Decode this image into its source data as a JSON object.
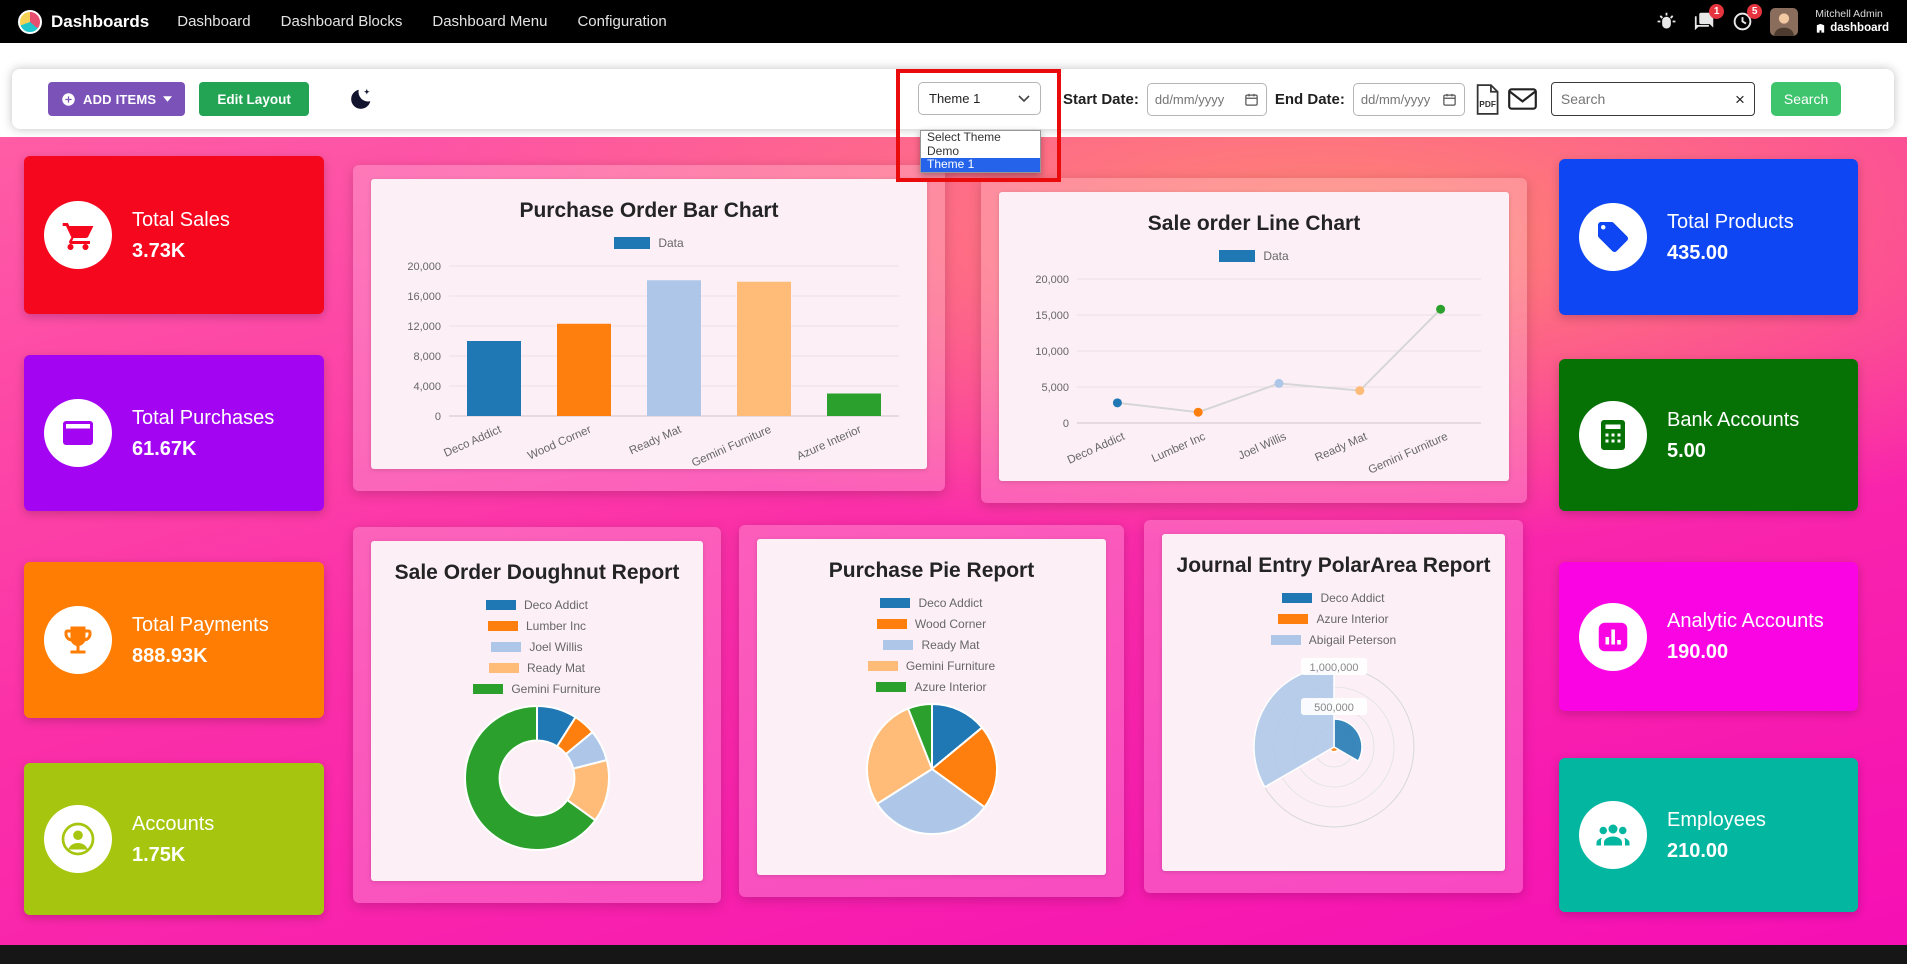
{
  "navbar": {
    "brand": "Dashboards",
    "menu": [
      "Dashboard",
      "Dashboard Blocks",
      "Dashboard Menu",
      "Configuration"
    ],
    "badges": {
      "messages": "1",
      "activities": "5"
    },
    "user": {
      "name": "Mitchell Admin",
      "company": "dashboard"
    }
  },
  "toolbar": {
    "add_items_label": "ADD ITEMS",
    "edit_layout_label": "Edit Layout",
    "theme_select": {
      "value": "Theme 1",
      "options": [
        "Select Theme",
        "Demo",
        "Theme 1"
      ]
    },
    "start_date_label": "Start Date:",
    "end_date_label": "End Date:",
    "date_placeholder": "dd/mm/yyyy",
    "search_placeholder": "Search",
    "search_button_label": "Search"
  },
  "ui_colors": {
    "add_items_bg": "#7a52b8",
    "edit_layout_bg": "#23a455",
    "search_btn_bg": "#3ec46d",
    "select_highlight": "#2563eb",
    "annotation_red": "#ea0c0c",
    "badge_red": "#e5343d"
  },
  "tiles_left": [
    {
      "label": "Total Sales",
      "value": "3.73K",
      "color": "#f5071d"
    },
    {
      "label": "Total Purchases",
      "value": "61.67K",
      "color": "#a304f2"
    },
    {
      "label": "Total Payments",
      "value": "888.93K",
      "color": "#ff7d02"
    },
    {
      "label": "Accounts",
      "value": "1.75K",
      "color": "#a6c50f"
    }
  ],
  "tiles_right": [
    {
      "label": "Total Products",
      "value": "435.00",
      "color": "#0d46f2"
    },
    {
      "label": "Bank Accounts",
      "value": "5.00",
      "color": "#067206"
    },
    {
      "label": "Analytic Accounts",
      "value": "190.00",
      "color": "#fb04e4"
    },
    {
      "label": "Employees",
      "value": "210.00",
      "color": "#02b69f"
    }
  ],
  "chart_data": [
    {
      "id": "purchase_order_bar",
      "type": "bar",
      "title": "Purchase Order Bar Chart",
      "legend": [
        "Data"
      ],
      "categories": [
        "Deco Addict",
        "Wood Corner",
        "Ready Mat",
        "Gemini Furniture",
        "Azure Interior"
      ],
      "values": [
        10000,
        12300,
        18100,
        17900,
        3000
      ],
      "yticks": [
        0,
        4000,
        8000,
        12000,
        16000,
        20000
      ],
      "ylim": [
        0,
        20000
      ],
      "grid": true,
      "legend_position": "top",
      "colors": [
        "#1f77b4",
        "#ff7f0e",
        "#aec7e8",
        "#ffbb78",
        "#2ca02c"
      ]
    },
    {
      "id": "sale_order_line",
      "type": "line",
      "title": "Sale order Line Chart",
      "legend": [
        "Data"
      ],
      "categories": [
        "Deco Addict",
        "Lumber Inc",
        "Joel Willis",
        "Ready Mat",
        "Gemini Furniture"
      ],
      "values": [
        2800,
        1500,
        5500,
        4500,
        15800
      ],
      "yticks": [
        0,
        5000,
        10000,
        15000,
        20000
      ],
      "ylim": [
        0,
        20000
      ],
      "grid": true,
      "legend_position": "top",
      "line_color": "#d6d6d6",
      "colors": [
        "#1f77b4",
        "#ff7f0e",
        "#aec7e8",
        "#ffbb78",
        "#2ca02c"
      ]
    },
    {
      "id": "sale_order_doughnut",
      "type": "doughnut",
      "title": "Sale Order Doughnut Report",
      "labels": [
        "Deco Addict",
        "Lumber Inc",
        "Joel Willis",
        "Ready Mat",
        "Gemini Furniture"
      ],
      "values": [
        9,
        5,
        7,
        14,
        65
      ],
      "legend_position": "top",
      "colors": [
        "#1f77b4",
        "#ff7f0e",
        "#aec7e8",
        "#ffbb78",
        "#2ca02c"
      ]
    },
    {
      "id": "purchase_pie",
      "type": "pie",
      "title": "Purchase Pie Report",
      "labels": [
        "Deco Addict",
        "Wood Corner",
        "Ready Mat",
        "Gemini Furniture",
        "Azure Interior"
      ],
      "values": [
        14,
        21,
        31,
        28,
        6
      ],
      "legend_position": "top",
      "colors": [
        "#1f77b4",
        "#ff7f0e",
        "#aec7e8",
        "#ffbb78",
        "#2ca02c"
      ]
    },
    {
      "id": "journal_entry_polararea",
      "type": "polarArea",
      "title": "Journal Entry PolarArea Report",
      "labels": [
        "Deco Addict",
        "Azure Interior",
        "Abigail Peterson"
      ],
      "values": [
        350000,
        60000,
        1000000
      ],
      "rmax": 1000000,
      "ticks": [
        "1,000,000",
        "500,000"
      ],
      "legend_position": "top",
      "colors": [
        "#1f77b4",
        "#ff7f0e",
        "#aec7e8"
      ]
    }
  ]
}
